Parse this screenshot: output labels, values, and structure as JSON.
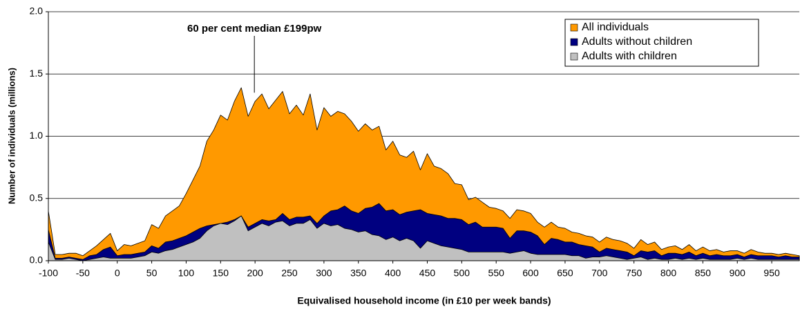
{
  "chart_data": {
    "type": "area",
    "annotation": {
      "text": "60 per cent median £199pw",
      "x": 199,
      "y": 1.35
    },
    "x_label": "Equivalised household income (in £10 per week bands)",
    "y_label": "Number of individuals (millions)",
    "xlim": [
      -100,
      990
    ],
    "ylim": [
      0,
      2
    ],
    "xticks": [
      -100,
      -50,
      0,
      50,
      100,
      150,
      200,
      250,
      300,
      350,
      400,
      450,
      500,
      550,
      600,
      650,
      700,
      750,
      800,
      850,
      900,
      950
    ],
    "yticks": [
      {
        "value": 0,
        "label": "0.0"
      },
      0.5,
      {
        "value": 1,
        "label": "1.0"
      },
      1.5,
      {
        "value": 2,
        "label": "2.0"
      }
    ],
    "grid": true,
    "legend": "top-right",
    "x": [
      -100,
      -90,
      -80,
      -70,
      -60,
      -50,
      -40,
      -30,
      -20,
      -10,
      0,
      10,
      20,
      30,
      40,
      50,
      60,
      70,
      80,
      90,
      100,
      110,
      120,
      130,
      140,
      150,
      160,
      170,
      180,
      190,
      200,
      210,
      220,
      230,
      240,
      250,
      260,
      270,
      280,
      290,
      300,
      310,
      320,
      330,
      340,
      350,
      360,
      370,
      380,
      390,
      400,
      410,
      420,
      430,
      440,
      450,
      460,
      470,
      480,
      490,
      500,
      510,
      520,
      530,
      540,
      550,
      560,
      570,
      580,
      590,
      600,
      610,
      620,
      630,
      640,
      650,
      660,
      670,
      680,
      690,
      700,
      710,
      720,
      730,
      740,
      750,
      760,
      770,
      780,
      790,
      800,
      810,
      820,
      830,
      840,
      850,
      860,
      870,
      880,
      890,
      900,
      910,
      920,
      930,
      940,
      950,
      960,
      970,
      980,
      990
    ],
    "series": [
      {
        "name": "All individuals",
        "color": "#ff9900",
        "values": [
          0.4,
          0.05,
          0.05,
          0.06,
          0.06,
          0.04,
          0.08,
          0.12,
          0.17,
          0.22,
          0.08,
          0.13,
          0.12,
          0.14,
          0.16,
          0.29,
          0.26,
          0.36,
          0.4,
          0.44,
          0.54,
          0.65,
          0.76,
          0.96,
          1.05,
          1.17,
          1.13,
          1.28,
          1.39,
          1.16,
          1.28,
          1.34,
          1.22,
          1.29,
          1.36,
          1.18,
          1.25,
          1.17,
          1.34,
          1.05,
          1.23,
          1.16,
          1.2,
          1.18,
          1.12,
          1.04,
          1.1,
          1.05,
          1.08,
          0.89,
          0.96,
          0.85,
          0.83,
          0.88,
          0.73,
          0.86,
          0.76,
          0.74,
          0.7,
          0.62,
          0.61,
          0.49,
          0.51,
          0.47,
          0.43,
          0.42,
          0.4,
          0.34,
          0.41,
          0.4,
          0.38,
          0.31,
          0.27,
          0.31,
          0.27,
          0.26,
          0.23,
          0.22,
          0.2,
          0.19,
          0.15,
          0.19,
          0.17,
          0.16,
          0.14,
          0.1,
          0.17,
          0.13,
          0.15,
          0.09,
          0.11,
          0.12,
          0.09,
          0.13,
          0.08,
          0.11,
          0.08,
          0.09,
          0.07,
          0.08,
          0.08,
          0.06,
          0.09,
          0.07,
          0.06,
          0.06,
          0.05,
          0.06,
          0.05,
          0.04
        ]
      },
      {
        "name": "Adults without children",
        "color": "#000080",
        "values": [
          0.25,
          0.02,
          0.02,
          0.03,
          0.02,
          0.01,
          0.04,
          0.05,
          0.09,
          0.11,
          0.04,
          0.05,
          0.05,
          0.06,
          0.07,
          0.12,
          0.1,
          0.15,
          0.16,
          0.18,
          0.2,
          0.23,
          0.26,
          0.28,
          0.29,
          0.3,
          0.31,
          0.33,
          0.36,
          0.27,
          0.3,
          0.33,
          0.32,
          0.33,
          0.38,
          0.33,
          0.35,
          0.35,
          0.36,
          0.3,
          0.36,
          0.4,
          0.41,
          0.44,
          0.4,
          0.38,
          0.42,
          0.43,
          0.46,
          0.4,
          0.41,
          0.37,
          0.39,
          0.4,
          0.41,
          0.38,
          0.37,
          0.36,
          0.34,
          0.34,
          0.33,
          0.29,
          0.31,
          0.27,
          0.27,
          0.27,
          0.26,
          0.18,
          0.24,
          0.24,
          0.23,
          0.2,
          0.13,
          0.18,
          0.17,
          0.15,
          0.15,
          0.13,
          0.12,
          0.11,
          0.07,
          0.1,
          0.09,
          0.08,
          0.07,
          0.04,
          0.08,
          0.07,
          0.08,
          0.04,
          0.06,
          0.06,
          0.05,
          0.07,
          0.04,
          0.06,
          0.04,
          0.05,
          0.04,
          0.04,
          0.05,
          0.03,
          0.05,
          0.04,
          0.04,
          0.04,
          0.03,
          0.04,
          0.03,
          0.03
        ]
      },
      {
        "name": "Adults with children",
        "color": "#c0c0c0",
        "values": [
          0.15,
          0.01,
          0.01,
          0.02,
          0.01,
          0.0,
          0.01,
          0.02,
          0.03,
          0.02,
          0.02,
          0.02,
          0.02,
          0.03,
          0.04,
          0.07,
          0.06,
          0.08,
          0.09,
          0.11,
          0.13,
          0.15,
          0.18,
          0.24,
          0.28,
          0.3,
          0.29,
          0.32,
          0.36,
          0.24,
          0.27,
          0.3,
          0.28,
          0.31,
          0.32,
          0.28,
          0.3,
          0.3,
          0.33,
          0.26,
          0.3,
          0.28,
          0.29,
          0.26,
          0.25,
          0.23,
          0.24,
          0.21,
          0.2,
          0.17,
          0.19,
          0.16,
          0.18,
          0.16,
          0.1,
          0.16,
          0.14,
          0.12,
          0.11,
          0.1,
          0.09,
          0.07,
          0.07,
          0.07,
          0.07,
          0.07,
          0.07,
          0.06,
          0.07,
          0.08,
          0.06,
          0.05,
          0.05,
          0.05,
          0.05,
          0.05,
          0.04,
          0.04,
          0.02,
          0.03,
          0.03,
          0.04,
          0.03,
          0.02,
          0.01,
          0.02,
          0.03,
          0.01,
          0.02,
          0.01,
          0.01,
          0.02,
          0.01,
          0.02,
          0.01,
          0.02,
          0.01,
          0.01,
          0.01,
          0.01,
          0.02,
          0.01,
          0.02,
          0.01,
          0.01,
          0.01,
          0.01,
          0.01,
          0.01,
          0.01
        ]
      }
    ]
  }
}
